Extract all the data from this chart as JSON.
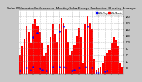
{
  "title": "Solar PV/Inverter Performance  Monthly Solar Energy Production  Running Average",
  "bar_values": [
    60,
    85,
    110,
    150,
    130,
    95,
    155,
    170,
    150,
    130,
    95,
    55,
    65,
    90,
    115,
    155,
    125,
    100,
    155,
    175,
    160,
    140,
    100,
    60,
    70,
    90,
    120,
    145,
    115,
    35,
    155,
    180,
    160,
    140,
    45,
    12,
    18,
    22,
    35,
    55,
    65,
    75,
    95,
    115,
    105,
    88,
    32,
    22
  ],
  "avg_values": [
    null,
    null,
    null,
    null,
    null,
    null,
    115,
    null,
    128,
    null,
    null,
    null,
    null,
    null,
    null,
    null,
    null,
    null,
    132,
    null,
    148,
    null,
    null,
    null,
    null,
    null,
    null,
    null,
    null,
    null,
    null,
    148,
    null,
    null,
    null,
    null,
    null,
    null,
    null,
    null,
    null,
    null,
    null,
    null,
    null,
    null,
    null,
    null
  ],
  "bar_color": "#ff0000",
  "avg_color": "#0000ff",
  "bg_color": "#c8c8c8",
  "plot_bg": "#ffffff",
  "grid_color": "#999999",
  "ylim": [
    0,
    200
  ],
  "ytick_vals": [
    20,
    40,
    60,
    80,
    100,
    120,
    140,
    160,
    180
  ],
  "title_fontsize": 3.2,
  "tick_fontsize": 2.6,
  "legend_blue_label": "kWh/Day",
  "legend_red_label": "kWh/Month"
}
